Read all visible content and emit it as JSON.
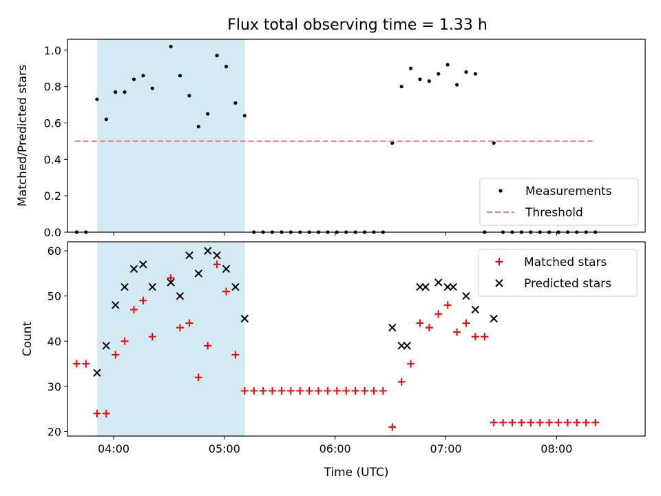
{
  "figure_title": "Flux total observing time = 1.33 h",
  "colors": {
    "highlight": "#add8e6",
    "measurement": "#000000",
    "threshold": "#f08080",
    "matched": "#ff0000",
    "predicted": "#000000"
  },
  "chart_data": [
    {
      "type": "scatter",
      "title": "Flux total observing time = 1.33 h",
      "xlabel": "",
      "ylabel": "Matched/Predicted stars",
      "xlim": [
        "03:35",
        "08:48"
      ],
      "ylim": [
        0,
        1.06
      ],
      "x_ticks": [
        "04:00",
        "05:00",
        "06:00",
        "07:00",
        "08:00"
      ],
      "x_ticklabels_visible": false,
      "y_ticks": [
        0.0,
        0.2,
        0.4,
        0.6,
        0.8,
        1.0
      ],
      "y_ticklabels": [
        "0.0",
        "0.2",
        "0.4",
        "0.6",
        "0.8",
        "1.0"
      ],
      "highlight_span": [
        "03:51",
        "05:11"
      ],
      "legend": {
        "placement": "lower right",
        "entries": [
          "Measurements",
          "Threshold"
        ]
      },
      "series": [
        {
          "name": "Measurements",
          "marker": "dot",
          "points": [
            [
              "03:40",
              0.0
            ],
            [
              "03:45",
              0.0
            ],
            [
              "03:51",
              0.73
            ],
            [
              "03:56",
              0.62
            ],
            [
              "04:01",
              0.77
            ],
            [
              "04:06",
              0.77
            ],
            [
              "04:11",
              0.84
            ],
            [
              "04:16",
              0.86
            ],
            [
              "04:21",
              0.79
            ],
            [
              "04:31",
              1.02
            ],
            [
              "04:36",
              0.86
            ],
            [
              "04:41",
              0.75
            ],
            [
              "04:46",
              0.58
            ],
            [
              "04:51",
              0.65
            ],
            [
              "04:56",
              0.97
            ],
            [
              "05:01",
              0.91
            ],
            [
              "05:06",
              0.71
            ],
            [
              "05:11",
              0.64
            ],
            [
              "05:16",
              0.0
            ],
            [
              "05:21",
              0.0
            ],
            [
              "05:26",
              0.0
            ],
            [
              "05:31",
              0.0
            ],
            [
              "05:36",
              0.0
            ],
            [
              "05:41",
              0.0
            ],
            [
              "05:46",
              0.0
            ],
            [
              "05:51",
              0.0
            ],
            [
              "05:56",
              0.0
            ],
            [
              "06:01",
              0.0
            ],
            [
              "06:06",
              0.0
            ],
            [
              "06:11",
              0.0
            ],
            [
              "06:16",
              0.0
            ],
            [
              "06:21",
              0.0
            ],
            [
              "06:26",
              0.0
            ],
            [
              "06:31",
              0.49
            ],
            [
              "06:36",
              0.8
            ],
            [
              "06:41",
              0.9
            ],
            [
              "06:46",
              0.84
            ],
            [
              "06:51",
              0.83
            ],
            [
              "06:56",
              0.87
            ],
            [
              "07:01",
              0.92
            ],
            [
              "07:06",
              0.81
            ],
            [
              "07:11",
              0.88
            ],
            [
              "07:16",
              0.87
            ],
            [
              "07:26",
              0.49
            ],
            [
              "07:21",
              0.0
            ],
            [
              "07:31",
              0.0
            ],
            [
              "07:36",
              0.0
            ],
            [
              "07:41",
              0.0
            ],
            [
              "07:46",
              0.0
            ],
            [
              "07:51",
              0.0
            ],
            [
              "07:56",
              0.0
            ],
            [
              "08:01",
              0.0
            ],
            [
              "08:06",
              0.0
            ],
            [
              "08:11",
              0.0
            ],
            [
              "08:16",
              0.0
            ],
            [
              "08:21",
              0.0
            ]
          ]
        },
        {
          "name": "Threshold",
          "style": "dashed",
          "points": [
            [
              "03:39",
              0.5
            ],
            [
              "08:21",
              0.5
            ]
          ]
        }
      ]
    },
    {
      "type": "scatter",
      "title": "",
      "xlabel": "Time (UTC)",
      "ylabel": "Count",
      "xlim": [
        "03:35",
        "08:48"
      ],
      "ylim": [
        19,
        62
      ],
      "x_ticks": [
        "04:00",
        "05:00",
        "06:00",
        "07:00",
        "08:00"
      ],
      "x_ticklabels": [
        "04:00",
        "05:00",
        "06:00",
        "07:00",
        "08:00"
      ],
      "y_ticks": [
        20,
        30,
        40,
        50,
        60
      ],
      "y_ticklabels": [
        "20",
        "30",
        "40",
        "50",
        "60"
      ],
      "highlight_span": [
        "03:51",
        "05:11"
      ],
      "legend": {
        "placement": "upper right",
        "entries": [
          "Matched stars",
          "Predicted stars"
        ]
      },
      "series": [
        {
          "name": "Matched stars",
          "marker": "plus",
          "points": [
            [
              "03:40",
              35
            ],
            [
              "03:45",
              35
            ],
            [
              "03:51",
              24
            ],
            [
              "03:56",
              24
            ],
            [
              "04:01",
              37
            ],
            [
              "04:06",
              40
            ],
            [
              "04:11",
              47
            ],
            [
              "04:16",
              49
            ],
            [
              "04:21",
              41
            ],
            [
              "04:31",
              54
            ],
            [
              "04:36",
              43
            ],
            [
              "04:41",
              44
            ],
            [
              "04:46",
              32
            ],
            [
              "04:51",
              39
            ],
            [
              "04:56",
              57
            ],
            [
              "05:01",
              51
            ],
            [
              "05:06",
              37
            ],
            [
              "05:11",
              29
            ],
            [
              "05:16",
              29
            ],
            [
              "05:21",
              29
            ],
            [
              "05:26",
              29
            ],
            [
              "05:31",
              29
            ],
            [
              "05:36",
              29
            ],
            [
              "05:46",
              29
            ],
            [
              "05:51",
              29
            ],
            [
              "05:56",
              29
            ],
            [
              "06:01",
              29
            ],
            [
              "06:06",
              29
            ],
            [
              "06:11",
              29
            ],
            [
              "06:16",
              29
            ],
            [
              "06:21",
              29
            ],
            [
              "06:26",
              29
            ],
            [
              "05:41",
              29
            ],
            [
              "06:31",
              21
            ],
            [
              "06:36",
              31
            ],
            [
              "06:41",
              35
            ],
            [
              "06:46",
              44
            ],
            [
              "06:51",
              43
            ],
            [
              "06:56",
              46
            ],
            [
              "07:01",
              48
            ],
            [
              "07:06",
              42
            ],
            [
              "07:11",
              44
            ],
            [
              "07:16",
              41
            ],
            [
              "07:21",
              41
            ],
            [
              "07:26",
              22
            ],
            [
              "07:31",
              22
            ],
            [
              "07:36",
              22
            ],
            [
              "07:41",
              22
            ],
            [
              "07:46",
              22
            ],
            [
              "07:51",
              22
            ],
            [
              "07:56",
              22
            ],
            [
              "08:01",
              22
            ],
            [
              "08:06",
              22
            ],
            [
              "08:11",
              22
            ],
            [
              "08:16",
              22
            ],
            [
              "08:21",
              22
            ]
          ]
        },
        {
          "name": "Predicted stars",
          "marker": "x",
          "points": [
            [
              "03:51",
              33
            ],
            [
              "03:56",
              39
            ],
            [
              "04:01",
              48
            ],
            [
              "04:06",
              52
            ],
            [
              "04:11",
              56
            ],
            [
              "04:16",
              57
            ],
            [
              "04:21",
              52
            ],
            [
              "04:31",
              53
            ],
            [
              "04:36",
              50
            ],
            [
              "04:41",
              59
            ],
            [
              "04:46",
              55
            ],
            [
              "04:51",
              60
            ],
            [
              "04:56",
              59
            ],
            [
              "05:01",
              56
            ],
            [
              "05:06",
              52
            ],
            [
              "05:11",
              45
            ],
            [
              "06:31",
              43
            ],
            [
              "06:36",
              39
            ],
            [
              "06:39",
              39
            ],
            [
              "06:46",
              52
            ],
            [
              "06:49",
              52
            ],
            [
              "06:56",
              53
            ],
            [
              "07:01",
              52
            ],
            [
              "07:04",
              52
            ],
            [
              "07:11",
              50
            ],
            [
              "07:16",
              47
            ],
            [
              "07:26",
              45
            ]
          ]
        }
      ]
    }
  ]
}
